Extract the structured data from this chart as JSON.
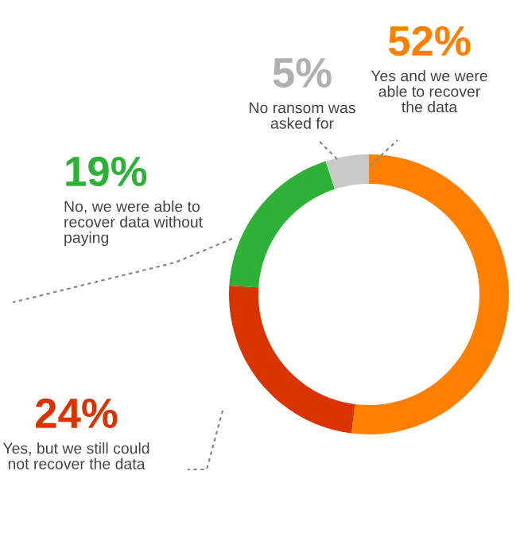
{
  "chart_data": {
    "type": "donut",
    "categories": [
      "Yes and we were able to recover the data",
      "Yes, but we still could not recover the data",
      "No, we were able to recover data without paying",
      "No ransom was asked for"
    ],
    "values": [
      52,
      24,
      19,
      5
    ],
    "colors": [
      "#ff8000",
      "#d93300",
      "#2db136",
      "#c8c8c8"
    ],
    "value_labels": [
      "52%",
      "24%",
      "19%",
      "5%"
    ],
    "legend": false
  }
}
